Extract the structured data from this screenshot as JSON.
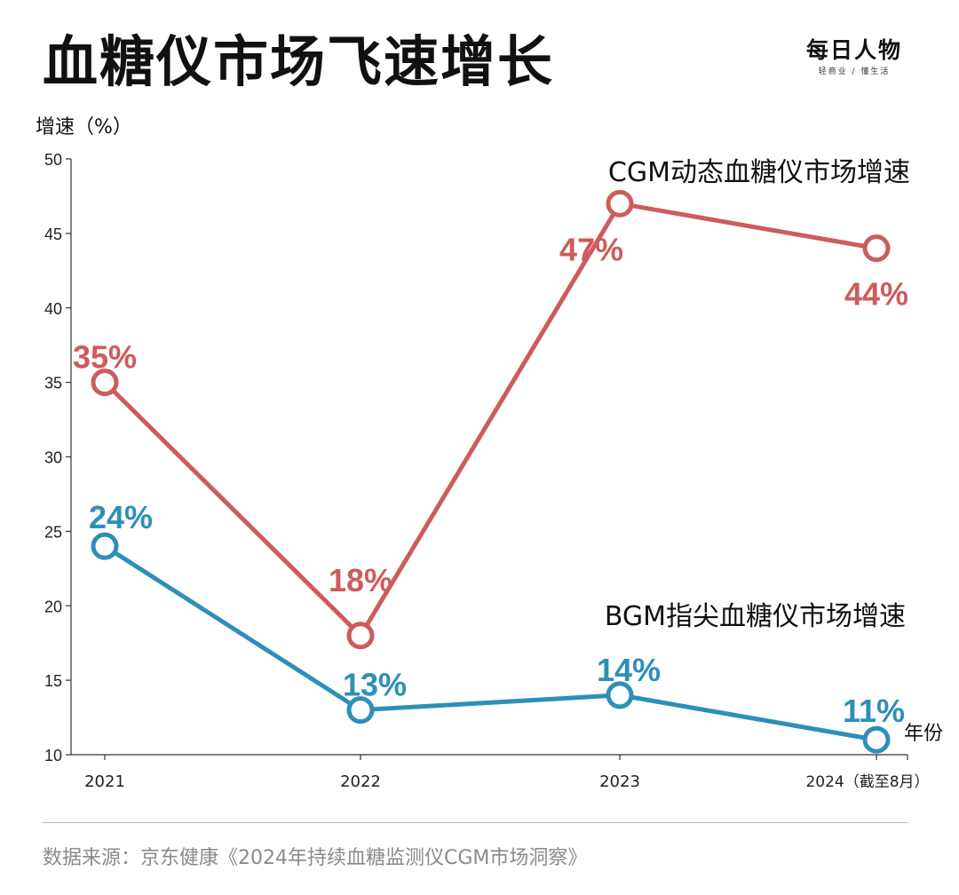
{
  "title": "血糖仪市场飞速增长",
  "brand": {
    "name": "每日人物",
    "tagline": "轻商业 / 懂生活"
  },
  "source": "数据来源：京东健康《2024年持续血糖监测仪CGM市场洞察》",
  "colors": {
    "cgm": "#cd5c5c",
    "bgm": "#2e8fb8",
    "axis": "#333333"
  },
  "chart_data": {
    "type": "line",
    "title": "血糖仪市场飞速增长",
    "ylabel": "增速（%）",
    "xlabel": "年份",
    "categories": [
      "2021",
      "2022",
      "2023",
      "2024（截至8月）"
    ],
    "ylim": [
      10,
      50
    ],
    "yticks": [
      10,
      15,
      20,
      25,
      30,
      35,
      40,
      45,
      50
    ],
    "series": [
      {
        "key": "cgm",
        "name": "CGM动态血糖仪市场增速",
        "values": [
          35,
          18,
          47,
          44
        ],
        "labels": [
          "35%",
          "18%",
          "47%",
          "44%"
        ]
      },
      {
        "key": "bgm",
        "name": "BGM指尖血糖仪市场增速",
        "values": [
          24,
          13,
          14,
          11
        ],
        "labels": [
          "24%",
          "13%",
          "14%",
          "11%"
        ]
      }
    ]
  }
}
